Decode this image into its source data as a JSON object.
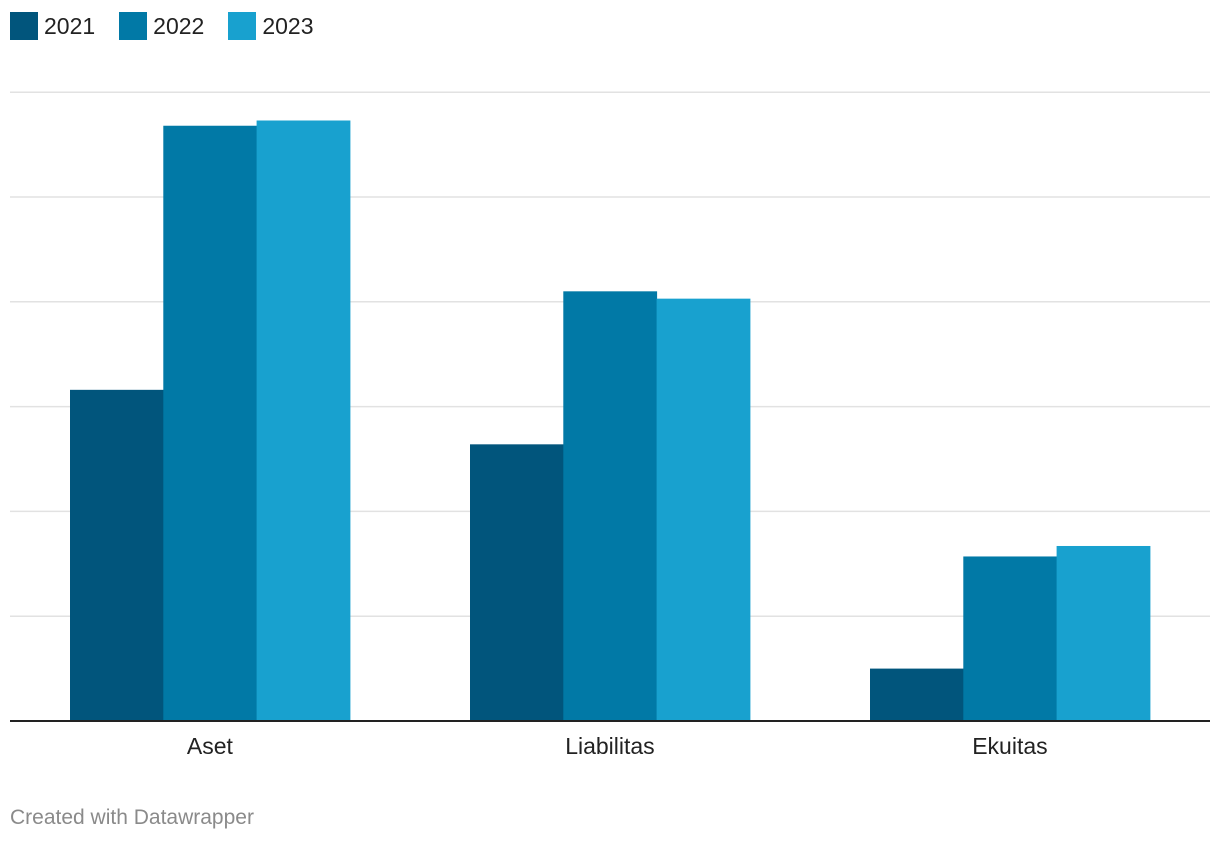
{
  "chart_data": {
    "type": "bar",
    "categories": [
      "Aset",
      "Liabilitas",
      "Ekuitas"
    ],
    "series": [
      {
        "name": "2021",
        "color": "#01557c",
        "values": [
          31.6,
          26.4,
          5.0
        ]
      },
      {
        "name": "2022",
        "color": "#0179a6",
        "values": [
          56.8,
          41.0,
          15.7
        ]
      },
      {
        "name": "2023",
        "color": "#18a1cf",
        "values": [
          57.3,
          40.3,
          16.7
        ]
      }
    ],
    "ylim": [
      0,
      60
    ],
    "grid": true,
    "legend": "top-left"
  },
  "footer": {
    "credit": "Created with Datawrapper"
  }
}
